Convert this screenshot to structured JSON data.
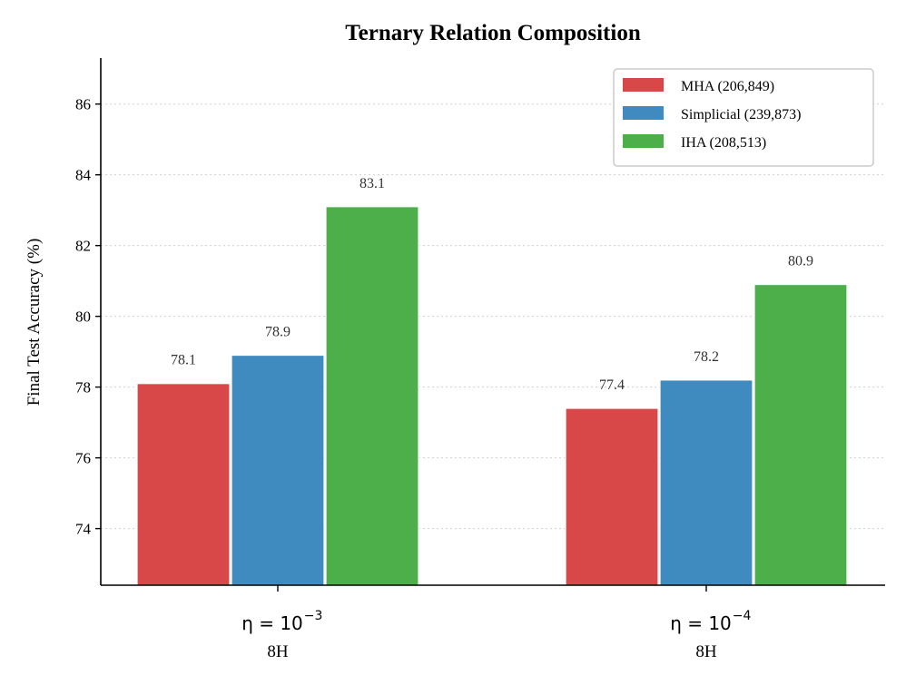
{
  "chart_data": {
    "type": "bar",
    "title": "Ternary Relation Composition",
    "xlabel": "",
    "ylabel": "Final Test Accuracy (%)",
    "ylim": [
      72.4,
      87.3
    ],
    "yticks": [
      74,
      76,
      78,
      80,
      82,
      84,
      86
    ],
    "grid": "horizontal dotted",
    "legend_position": "top-right",
    "categories": [
      {
        "eta_base": "η = 10",
        "eta_exp": "−3",
        "sublabel": "8H"
      },
      {
        "eta_base": "η = 10",
        "eta_exp": "−4",
        "sublabel": "8H"
      }
    ],
    "series": [
      {
        "name": "MHA",
        "params": "(206,849)",
        "color": "#d94848",
        "values": [
          78.1,
          77.4
        ],
        "labels": [
          "78.1",
          "77.4"
        ]
      },
      {
        "name": "Simplicial",
        "params": "(239,873)",
        "color": "#3f8bc0",
        "values": [
          78.9,
          78.2
        ],
        "labels": [
          "78.9",
          "78.2"
        ]
      },
      {
        "name": "IHA",
        "params": "(208,513)",
        "color": "#4caf4a",
        "values": [
          83.1,
          80.9
        ],
        "labels": [
          "83.1",
          "80.9"
        ]
      }
    ]
  }
}
